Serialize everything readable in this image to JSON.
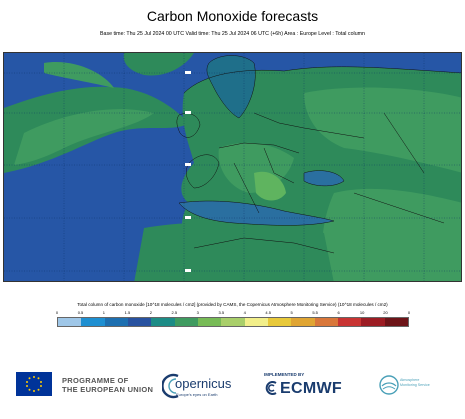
{
  "header": {
    "title": "Carbon Monoxide forecasts",
    "subtitle": "Base time: Thu 25 Jul 2024 00 UTC Valid time: Thu 25 Jul 2024 06 UTC (+6h) Area : Europe Level : Total column"
  },
  "map": {
    "region": "Europe",
    "ocean_color": "#2656a6",
    "land_colors": [
      "#2e8a5a",
      "#3f9b60",
      "#5fb45f",
      "#8ac46a"
    ]
  },
  "legend": {
    "title": "Total column of carbon monoxide [10^18 molecules / cm2] (provided by CAMS, the Copernicus Atmosphere Monitoring Service) (10^18 molecules / cm2)",
    "ticks": [
      "0",
      "0.5",
      "1",
      "1.5",
      "2",
      "2.5",
      "3",
      "3.5",
      "4",
      "4.5",
      "5",
      "5.5",
      "6",
      "10",
      "20",
      "0"
    ],
    "colors": [
      "#9fc7e8",
      "#1e8fd1",
      "#1d6fb0",
      "#2852a0",
      "#1c8c86",
      "#3f9b60",
      "#77bb56",
      "#a9cf6a",
      "#f2ef8a",
      "#e8c93a",
      "#e0a533",
      "#d9773a",
      "#c83432",
      "#9c1c23",
      "#6d1418"
    ]
  },
  "footer": {
    "eu_line1": "PROGRAMME OF",
    "eu_line2": "THE EUROPEAN UNION",
    "copernicus": "opernicus",
    "copernicus_tagline": "Europe's eyes on Earth",
    "implemented_by": "IMPLEMENTED BY",
    "ecmwf": "ECMWF",
    "cams_line1": "Atmosphere",
    "cams_line2": "Monitoring Service"
  }
}
